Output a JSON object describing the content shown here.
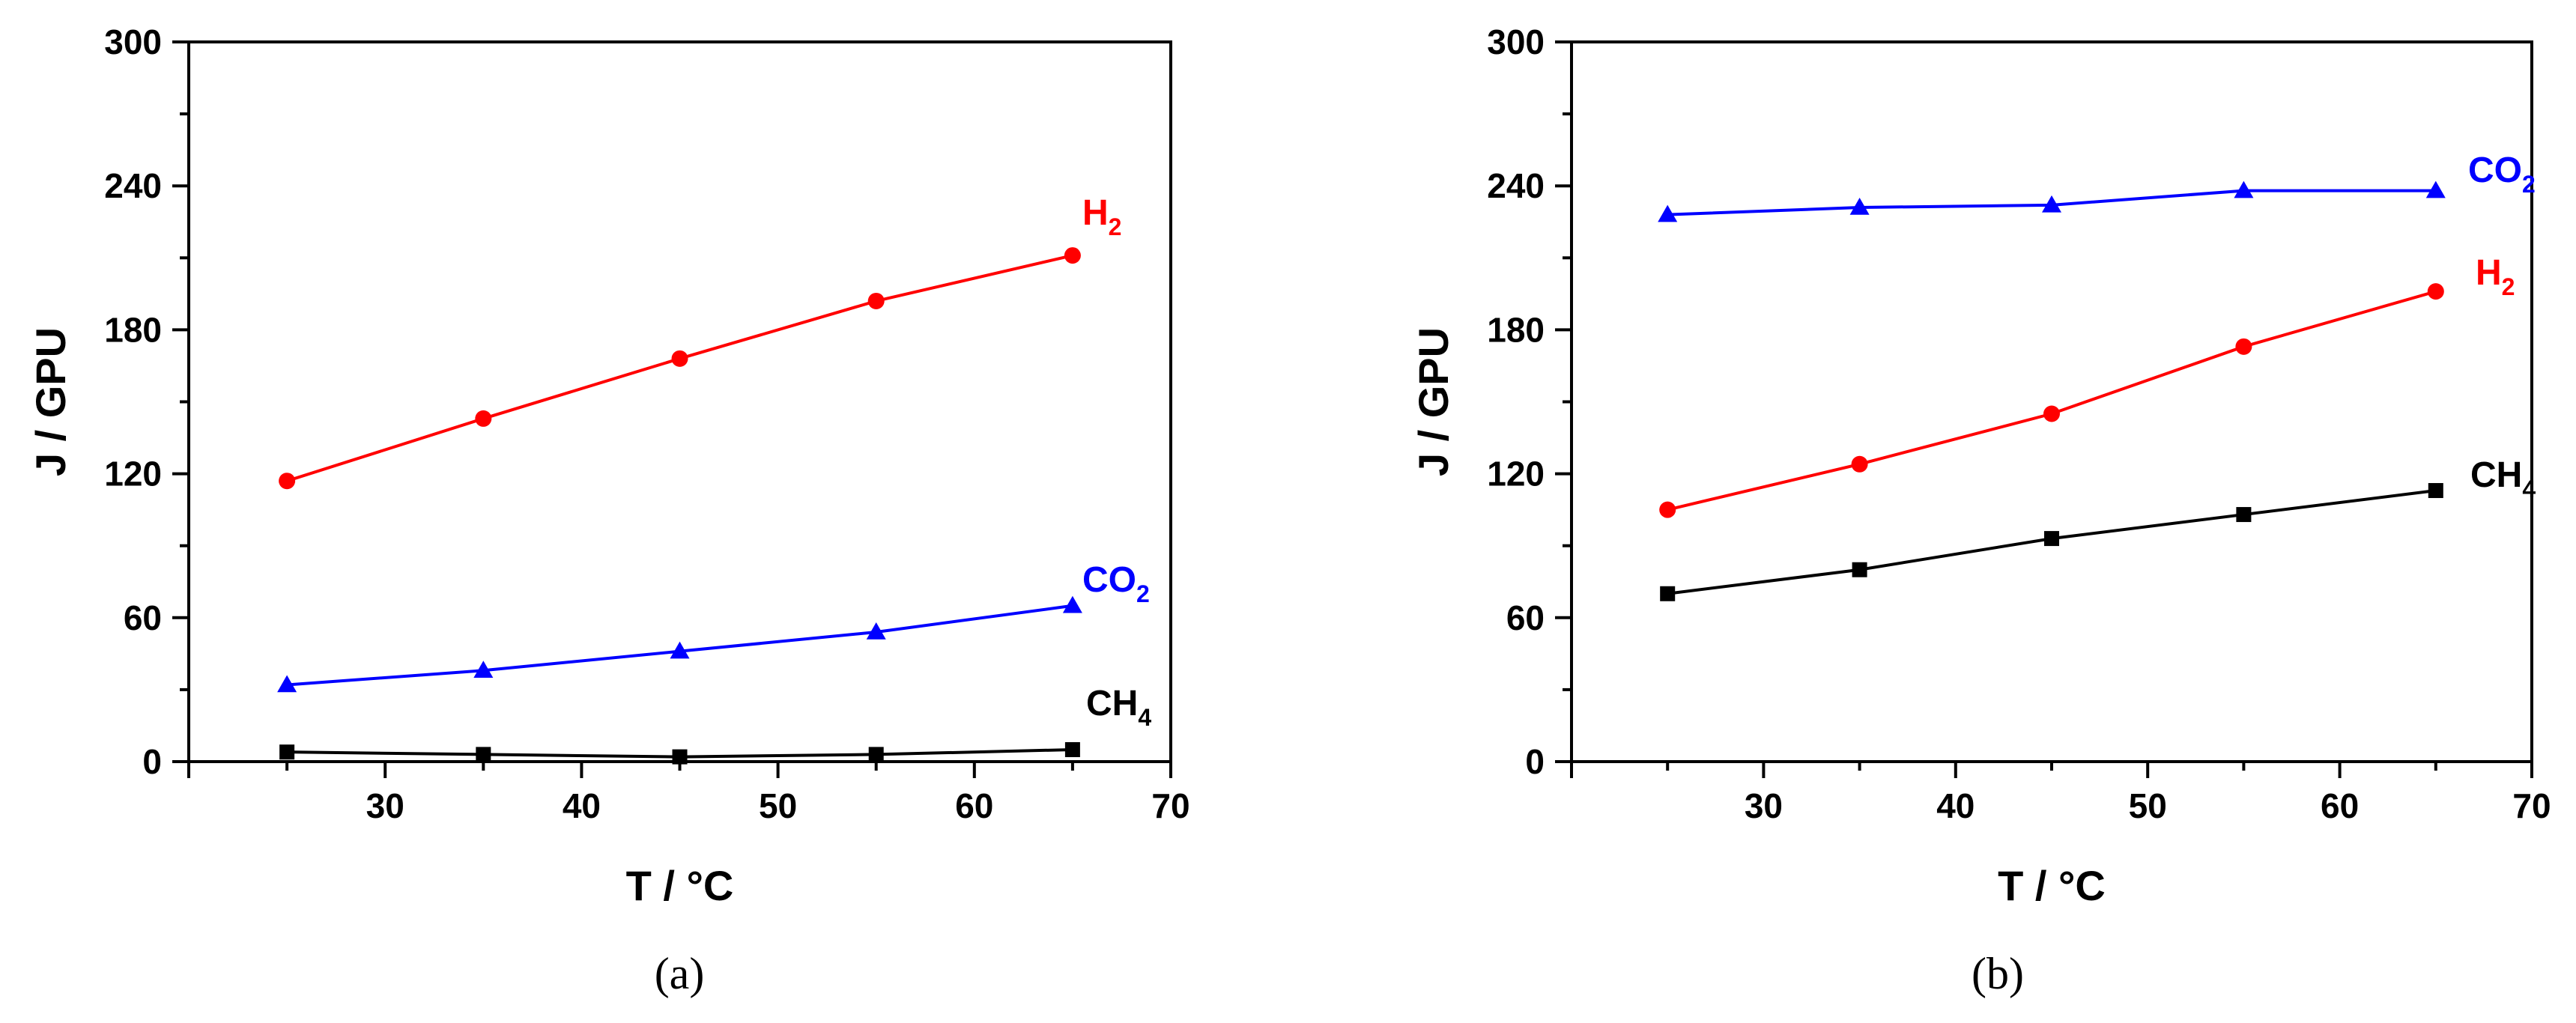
{
  "chart_data": [
    {
      "type": "line",
      "panel_label": "(a)",
      "xlabel": "T / °C",
      "ylabel": "J / GPU",
      "xlim": [
        20,
        70
      ],
      "ylim": [
        0,
        300
      ],
      "xticks": [
        30,
        40,
        50,
        60,
        70
      ],
      "yticks": [
        0,
        60,
        120,
        180,
        240,
        300
      ],
      "grid": false,
      "x": [
        25,
        35,
        45,
        55,
        65
      ],
      "series": [
        {
          "name": "H2",
          "label_main": "H",
          "label_sub": "2",
          "color": "#ff0000",
          "marker": "circle",
          "values": [
            117,
            143,
            168,
            192,
            211
          ]
        },
        {
          "name": "CO2",
          "label_main": "CO",
          "label_sub": "2",
          "color": "#0000ff",
          "marker": "triangle",
          "values": [
            32,
            38,
            46,
            54,
            65
          ]
        },
        {
          "name": "CH4",
          "label_main": "CH",
          "label_sub": "4",
          "color": "#000000",
          "marker": "square",
          "values": [
            4,
            3,
            2,
            3,
            5
          ]
        }
      ]
    },
    {
      "type": "line",
      "panel_label": "(b)",
      "xlabel": "T / °C",
      "ylabel": "J / GPU",
      "xlim": [
        20,
        70
      ],
      "ylim": [
        0,
        300
      ],
      "xticks": [
        30,
        40,
        50,
        60,
        70
      ],
      "yticks": [
        0,
        60,
        120,
        180,
        240,
        300
      ],
      "grid": false,
      "x": [
        25,
        35,
        45,
        55,
        65
      ],
      "series": [
        {
          "name": "CO2",
          "label_main": "CO",
          "label_sub": "2",
          "color": "#0000ff",
          "marker": "triangle",
          "values": [
            228,
            231,
            232,
            238,
            238
          ]
        },
        {
          "name": "H2",
          "label_main": "H",
          "label_sub": "2",
          "color": "#ff0000",
          "marker": "circle",
          "values": [
            105,
            124,
            145,
            173,
            196
          ]
        },
        {
          "name": "CH4",
          "label_main": "CH",
          "label_sub": "4",
          "color": "#000000",
          "marker": "square",
          "values": [
            70,
            80,
            93,
            103,
            113
          ]
        }
      ]
    }
  ]
}
